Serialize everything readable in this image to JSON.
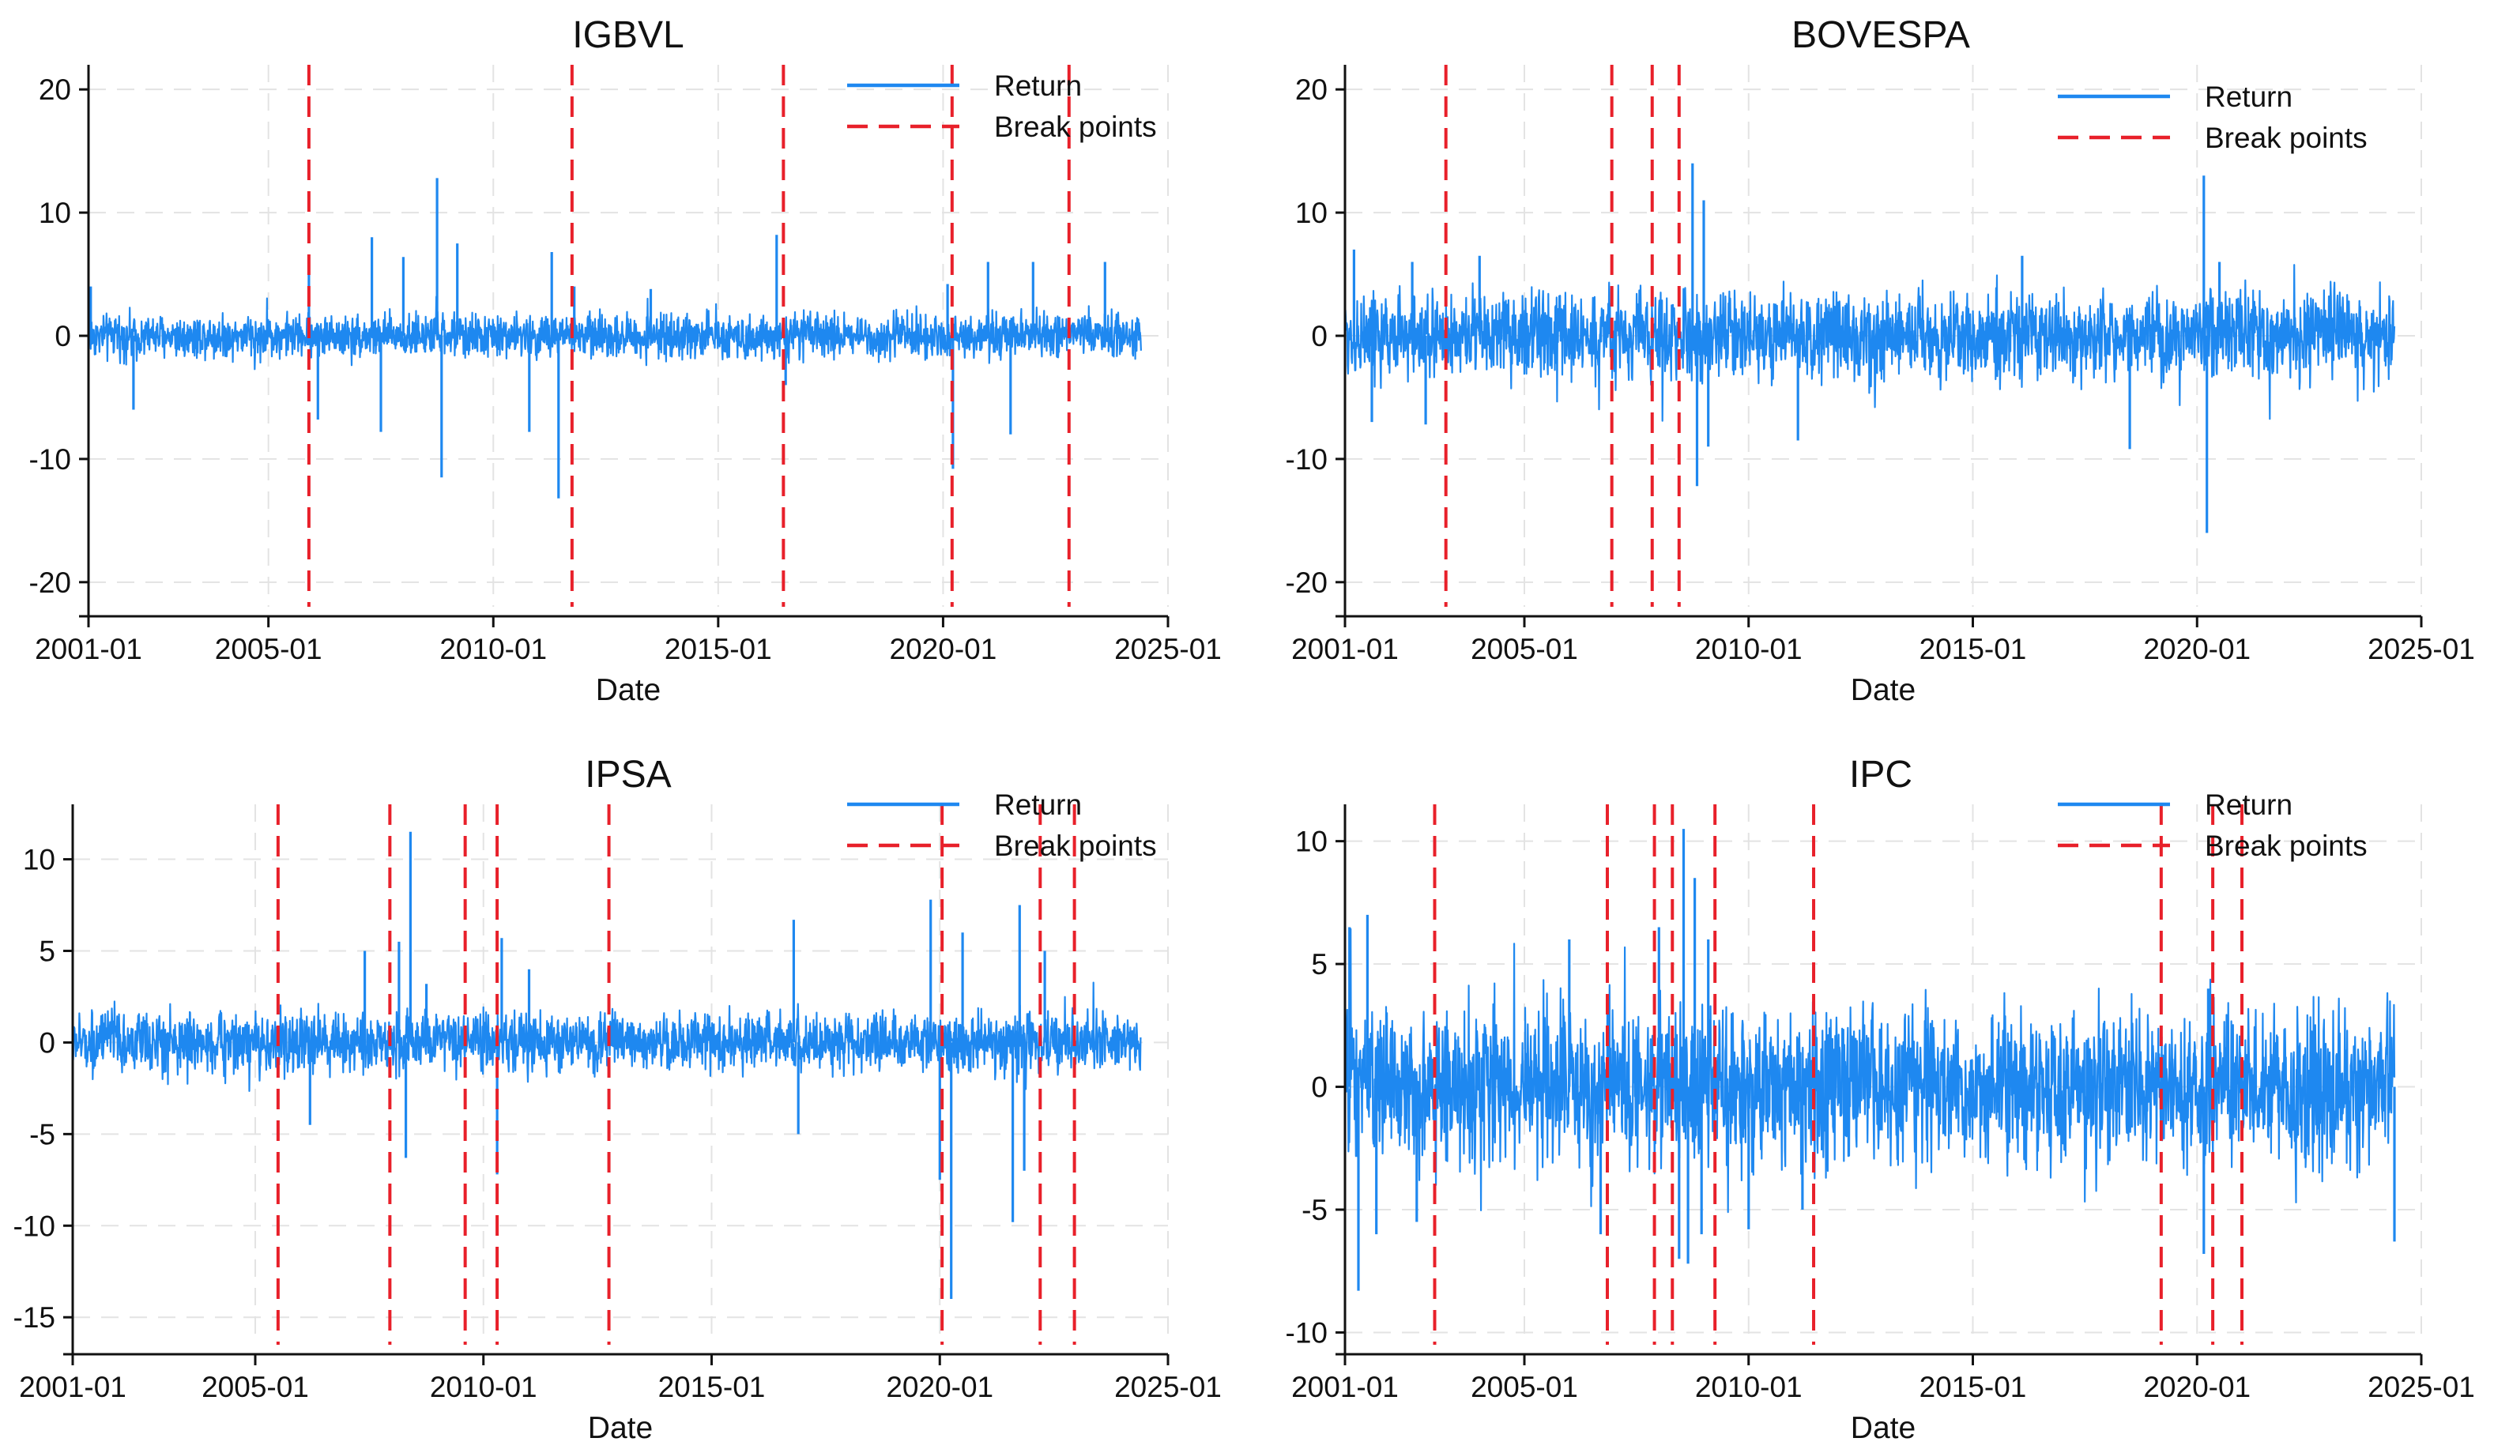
{
  "colors": {
    "return": "#1e88f0",
    "break": "#e8202a",
    "grid": "#e3e3e3",
    "axis": "#111111"
  },
  "chart_data": [
    {
      "type": "line",
      "title": "IGBVL",
      "xlabel": "Date",
      "ylabel": "",
      "xlim": [
        2001.0,
        2025.0
      ],
      "ylim": [
        -22,
        22
      ],
      "yticks": [
        -20,
        -10,
        0,
        10,
        20
      ],
      "ytick_labels": [
        "-20",
        "-10",
        "0",
        "10",
        "20"
      ],
      "xticks": [
        2001.0,
        2005.0,
        2010.0,
        2015.0,
        2020.0,
        2025.0
      ],
      "xtick_labels": [
        "2001-01",
        "2005-01",
        "2010-01",
        "2015-01",
        "2020-01",
        "2025-01"
      ],
      "legend": {
        "position": "top-right",
        "return_label": "Return",
        "break_label": "Break points"
      },
      "data_range": [
        2001.0,
        2024.4
      ],
      "typical_amplitude": 1.4,
      "series": [
        {
          "name": "Return",
          "peaks": [
            [
              2001.05,
              4.0
            ],
            [
              2002.0,
              -6.0
            ],
            [
              2005.9,
              5.2
            ],
            [
              2006.1,
              -6.8
            ],
            [
              2007.3,
              8.0
            ],
            [
              2007.5,
              -7.8
            ],
            [
              2008.0,
              6.4
            ],
            [
              2008.75,
              12.8
            ],
            [
              2008.85,
              -11.5
            ],
            [
              2009.2,
              7.5
            ],
            [
              2010.8,
              -7.8
            ],
            [
              2011.3,
              6.8
            ],
            [
              2011.45,
              -13.2
            ],
            [
              2011.8,
              4.0
            ],
            [
              2013.5,
              3.8
            ],
            [
              2016.3,
              8.2
            ],
            [
              2016.5,
              -4.0
            ],
            [
              2020.1,
              4.2
            ],
            [
              2020.22,
              -10.8
            ],
            [
              2021.0,
              6.0
            ],
            [
              2021.5,
              -8.0
            ],
            [
              2022.0,
              6.0
            ],
            [
              2023.6,
              6.0
            ]
          ]
        }
      ],
      "break_points": [
        2005.9,
        2011.75,
        2016.45,
        2020.2,
        2022.8
      ]
    },
    {
      "type": "line",
      "title": "BOVESPA",
      "xlabel": "Date",
      "ylabel": "",
      "xlim": [
        2001.0,
        2025.0
      ],
      "ylim": [
        -22,
        22
      ],
      "yticks": [
        -20,
        -10,
        0,
        10,
        20
      ],
      "ytick_labels": [
        "-20",
        "-10",
        "0",
        "10",
        "20"
      ],
      "xticks": [
        2001.0,
        2005.0,
        2010.0,
        2015.0,
        2020.0,
        2025.0
      ],
      "xtick_labels": [
        "2001-01",
        "2005-01",
        "2010-01",
        "2015-01",
        "2020-01",
        "2025-01"
      ],
      "legend": {
        "position": "top-right",
        "return_label": "Return",
        "break_label": "Break points"
      },
      "data_range": [
        2001.0,
        2024.4
      ],
      "typical_amplitude": 2.8,
      "series": [
        {
          "name": "Return",
          "peaks": [
            [
              2001.2,
              7.0
            ],
            [
              2001.6,
              -7.0
            ],
            [
              2002.5,
              6.0
            ],
            [
              2002.8,
              -7.2
            ],
            [
              2004.0,
              6.5
            ],
            [
              2008.75,
              14.0
            ],
            [
              2008.85,
              -12.2
            ],
            [
              2009.0,
              11.0
            ],
            [
              2009.1,
              -9.0
            ],
            [
              2011.1,
              -8.5
            ],
            [
              2016.1,
              6.5
            ],
            [
              2018.5,
              -9.2
            ],
            [
              2020.15,
              13.0
            ],
            [
              2020.22,
              -16.0
            ],
            [
              2020.5,
              6.0
            ]
          ]
        }
      ],
      "break_points": [
        2003.25,
        2006.95,
        2007.85,
        2008.45
      ]
    },
    {
      "type": "line",
      "title": "IPSA",
      "xlabel": "Date",
      "ylabel": "",
      "xlim": [
        2001.0,
        2025.0
      ],
      "ylim": [
        -16.5,
        13
      ],
      "yticks": [
        -15,
        -10,
        -5,
        0,
        5,
        10
      ],
      "ytick_labels": [
        "-15",
        "-10",
        "-5",
        "0",
        "5",
        "10"
      ],
      "xticks": [
        2001.0,
        2005.0,
        2010.0,
        2015.0,
        2020.0,
        2025.0
      ],
      "xtick_labels": [
        "2001-01",
        "2005-01",
        "2010-01",
        "2015-01",
        "2020-01",
        "2025-01"
      ],
      "legend": {
        "position": "top-right",
        "return_label": "Return",
        "break_label": "Break points"
      },
      "data_range": [
        2001.0,
        2024.4
      ],
      "typical_amplitude": 1.3,
      "series": [
        {
          "name": "Return",
          "peaks": [
            [
              2006.2,
              -4.5
            ],
            [
              2007.4,
              5.0
            ],
            [
              2008.15,
              5.5
            ],
            [
              2008.3,
              -6.3
            ],
            [
              2008.4,
              11.5
            ],
            [
              2008.75,
              3.2
            ],
            [
              2010.3,
              -7.2
            ],
            [
              2010.4,
              5.7
            ],
            [
              2011.0,
              4.0
            ],
            [
              2016.8,
              6.7
            ],
            [
              2016.9,
              -5.0
            ],
            [
              2019.8,
              7.8
            ],
            [
              2020.0,
              -7.5
            ],
            [
              2020.25,
              -14.0
            ],
            [
              2020.5,
              6.0
            ],
            [
              2021.6,
              -9.8
            ],
            [
              2021.75,
              7.5
            ],
            [
              2021.85,
              -7.0
            ],
            [
              2022.3,
              5.0
            ]
          ]
        }
      ],
      "break_points": [
        2005.5,
        2007.95,
        2009.6,
        2010.3,
        2012.75,
        2020.05,
        2022.2,
        2022.95
      ]
    },
    {
      "type": "line",
      "title": "IPC",
      "xlabel": "Date",
      "ylabel": "",
      "xlim": [
        2001.0,
        2025.0
      ],
      "ylim": [
        -10.5,
        11.5
      ],
      "yticks": [
        -10,
        -5,
        0,
        5,
        10
      ],
      "ytick_labels": [
        "-10",
        "-5",
        "0",
        "5",
        "10"
      ],
      "xticks": [
        2001.0,
        2005.0,
        2010.0,
        2015.0,
        2020.0,
        2025.0
      ],
      "xtick_labels": [
        "2001-01",
        "2005-01",
        "2010-01",
        "2015-01",
        "2020-01",
        "2025-01"
      ],
      "legend": {
        "position": "top-right",
        "return_label": "Return",
        "break_label": "Break points"
      },
      "data_range": [
        2001.0,
        2024.4
      ],
      "typical_amplitude": 2.5,
      "series": [
        {
          "name": "Return",
          "peaks": [
            [
              2001.1,
              6.5
            ],
            [
              2001.3,
              -8.3
            ],
            [
              2001.5,
              7.0
            ],
            [
              2001.7,
              -6.0
            ],
            [
              2002.6,
              -5.5
            ],
            [
              2006.0,
              6.0
            ],
            [
              2006.7,
              -6.0
            ],
            [
              2008.0,
              6.5
            ],
            [
              2008.45,
              -7.0
            ],
            [
              2008.55,
              10.5
            ],
            [
              2008.65,
              -7.2
            ],
            [
              2008.8,
              8.5
            ],
            [
              2008.95,
              -6.0
            ],
            [
              2009.1,
              6.0
            ],
            [
              2010.0,
              -5.8
            ],
            [
              2011.2,
              -5.0
            ],
            [
              2020.15,
              -6.8
            ],
            [
              2020.25,
              4.0
            ],
            [
              2024.4,
              -6.3
            ]
          ]
        }
      ],
      "break_points": [
        2003.0,
        2006.85,
        2007.9,
        2008.3,
        2009.25,
        2011.45,
        2019.2,
        2020.35,
        2021.0
      ]
    }
  ]
}
